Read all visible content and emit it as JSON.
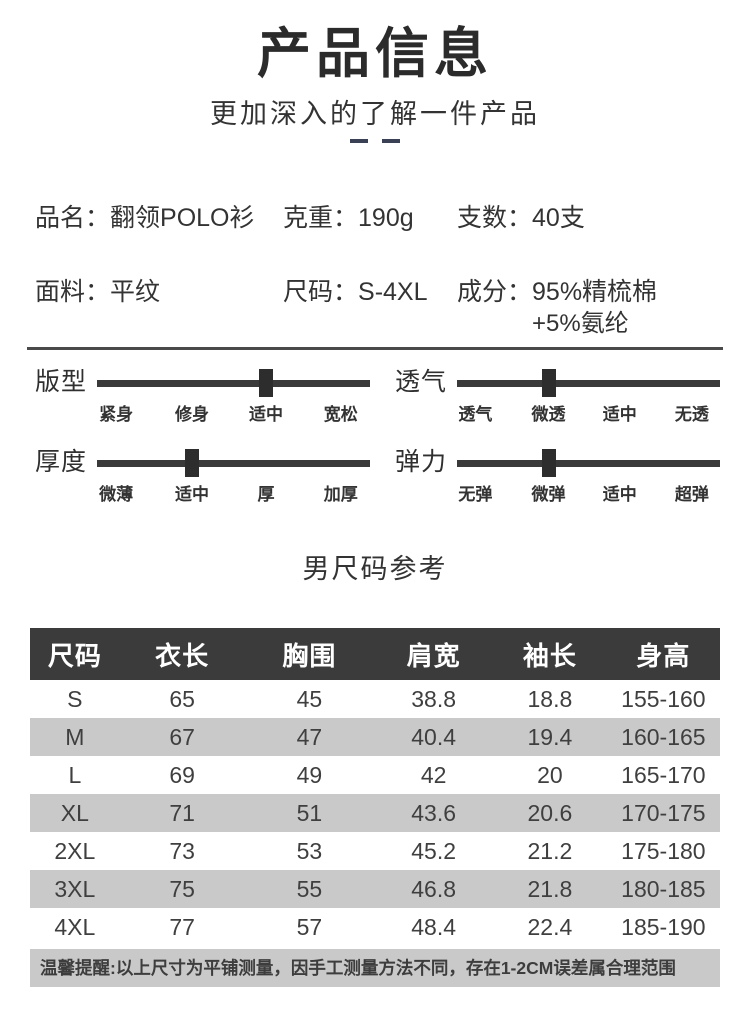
{
  "page": {
    "title": "产品信息",
    "subtitle": "更加深入的了解一件产品"
  },
  "attributes": {
    "rows": [
      [
        {
          "label": "品名：",
          "value": "翻领POLO衫"
        },
        {
          "label": "克重：",
          "value": "190g"
        },
        {
          "label": "支数：",
          "value": "40支"
        }
      ],
      [
        {
          "label": "面料：",
          "value": "平纹"
        },
        {
          "label": "尺码：",
          "value": "S-4XL"
        },
        {
          "label": "成分：",
          "value": "95%精梳棉",
          "value_line2": "+5%氨纶"
        }
      ]
    ]
  },
  "sliders": [
    {
      "name": "版型",
      "labels": [
        "紧身",
        "修身",
        "适中",
        "宽松"
      ],
      "selected": "适中",
      "selected_index": 2
    },
    {
      "name": "透气",
      "labels": [
        "透气",
        "微透",
        "适中",
        "无透"
      ],
      "selected": "微透",
      "selected_index": 1
    },
    {
      "name": "厚度",
      "labels": [
        "微薄",
        "适中",
        "厚",
        "加厚"
      ],
      "selected": "适中",
      "selected_index": 1
    },
    {
      "name": "弹力",
      "labels": [
        "无弹",
        "微弹",
        "适中",
        "超弹"
      ],
      "selected": "微弹",
      "selected_index": 1
    }
  ],
  "size_chart": {
    "title": "男尺码参考",
    "headers": [
      "尺码",
      "衣长",
      "胸围",
      "肩宽",
      "袖长",
      "身高"
    ],
    "rows": [
      [
        "S",
        "65",
        "45",
        "38.8",
        "18.8",
        "155-160"
      ],
      [
        "M",
        "67",
        "47",
        "40.4",
        "19.4",
        "160-165"
      ],
      [
        "L",
        "69",
        "49",
        "42",
        "20",
        "165-170"
      ],
      [
        "XL",
        "71",
        "51",
        "43.6",
        "20.6",
        "170-175"
      ],
      [
        "2XL",
        "73",
        "53",
        "45.2",
        "21.2",
        "175-180"
      ],
      [
        "3XL",
        "75",
        "55",
        "46.8",
        "21.8",
        "180-185"
      ],
      [
        "4XL",
        "77",
        "57",
        "48.4",
        "22.4",
        "185-190"
      ]
    ],
    "note": "温馨提醒:以上尺寸为平铺测量，因手工测量方法不同，存在1-2CM误差属合理范围"
  },
  "colors": {
    "title_text": "#2b2b2b",
    "body_text": "#333333",
    "accent_dash": "#3a4155",
    "slider_track": "#3a3a3a",
    "table_header_bg": "#3b3b3b",
    "table_header_text": "#ffffff",
    "row_alt_bg": "#c9c9c9",
    "note_bg": "#c9c9c9"
  }
}
